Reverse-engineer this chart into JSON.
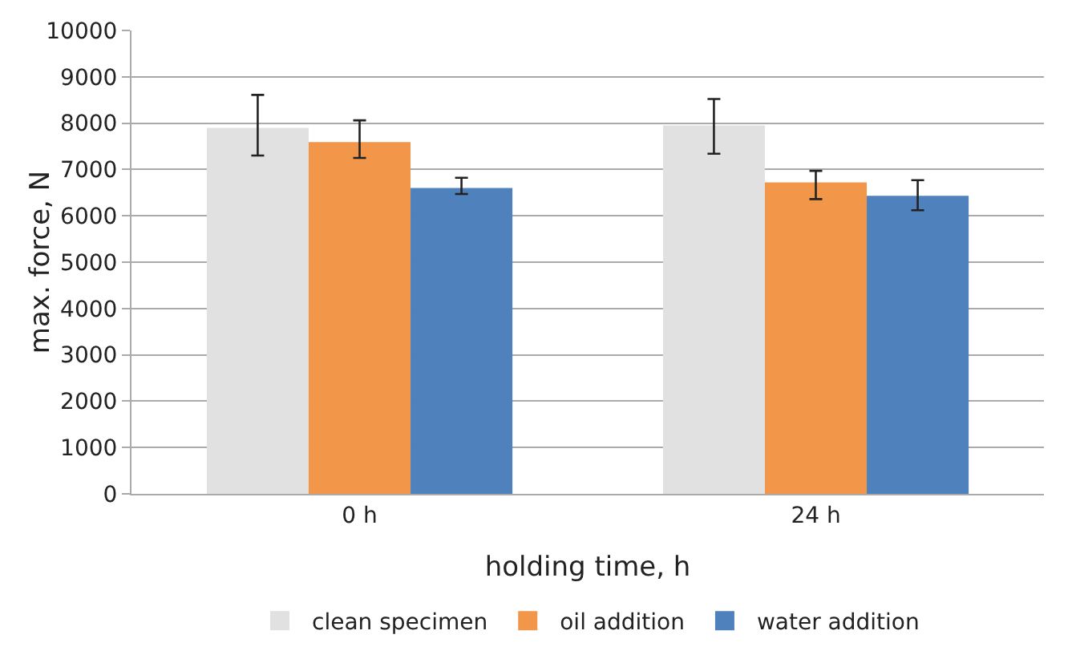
{
  "chart_data": {
    "type": "bar",
    "xlabel": "holding time, h",
    "ylabel": "max. force, N",
    "categories": [
      "0 h",
      "24 h"
    ],
    "series": [
      {
        "name": "clean specimen",
        "color": "#e1e1e1",
        "values": [
          7900,
          7950
        ],
        "errors": [
          [
            7300,
            8610
          ],
          [
            7340,
            8520
          ]
        ]
      },
      {
        "name": "oil addition",
        "color": "#f2974a",
        "values": [
          7590,
          6720
        ],
        "errors": [
          [
            7250,
            8060
          ],
          [
            6360,
            6970
          ]
        ]
      },
      {
        "name": "water addition",
        "color": "#4f81bd",
        "values": [
          6600,
          6430
        ],
        "errors": [
          [
            6470,
            6820
          ],
          [
            6120,
            6770
          ]
        ]
      }
    ],
    "ylim": [
      0,
      10000
    ],
    "yticks": [
      0,
      1000,
      2000,
      3000,
      4000,
      5000,
      6000,
      7000,
      8000,
      9000,
      10000
    ],
    "grid": "y",
    "legend": "bottom"
  }
}
